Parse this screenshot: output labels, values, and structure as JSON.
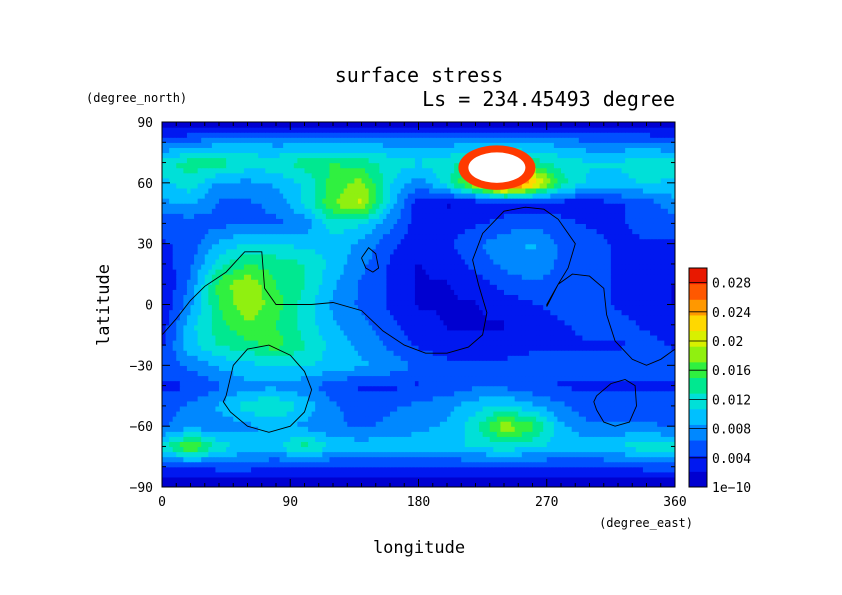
{
  "chart_data": {
    "type": "heatmap",
    "title": "surface stress",
    "subtitle": "Ls = 234.45493 degree",
    "xlabel": "longitude",
    "ylabel": "latitude",
    "x_unit": "(degree_east)",
    "y_unit": "(degree_north)",
    "xlim": [
      0,
      360
    ],
    "ylim": [
      -90,
      90
    ],
    "x_ticks": [
      "0",
      "90",
      "180",
      "270",
      "360"
    ],
    "y_ticks": [
      "90",
      "60",
      "30",
      "0",
      "−30",
      "−60",
      "−90"
    ],
    "x_tick_values": [
      0,
      90,
      180,
      270,
      360
    ],
    "y_tick_values": [
      90,
      60,
      30,
      0,
      -30,
      -60,
      -90
    ],
    "colorbar": {
      "min": 1e-10,
      "max": 0.03,
      "tick_labels": [
        "1e−10",
        "0.004",
        "0.008",
        "0.012",
        "0.016",
        "0.02",
        "0.024",
        "0.028"
      ],
      "tick_values": [
        0,
        0.004,
        0.008,
        0.012,
        0.016,
        0.02,
        0.024,
        0.028
      ],
      "colors": [
        "#0000d0",
        "#0018f0",
        "#0050ff",
        "#0088ff",
        "#00c0ff",
        "#00e0d8",
        "#00e890",
        "#30f040",
        "#90f010",
        "#d8f000",
        "#ffd800",
        "#ff9800",
        "#ff5800",
        "#e81800"
      ]
    },
    "grid": false,
    "lon": [
      0,
      20,
      40,
      60,
      80,
      100,
      120,
      140,
      160,
      180,
      200,
      220,
      240,
      260,
      280,
      300,
      320,
      340,
      360
    ],
    "lat": [
      -90,
      -80,
      -70,
      -60,
      -50,
      -40,
      -30,
      -20,
      -10,
      0,
      10,
      20,
      30,
      40,
      50,
      60,
      70,
      80,
      90
    ],
    "values": [
      [
        0.0,
        0.0,
        0.0,
        0.0,
        0.0,
        0.0,
        0.0,
        0.0,
        0.0,
        0.0,
        0.0,
        0.0,
        0.0,
        0.0,
        0.0,
        0.0,
        0.0,
        0.0,
        0.0
      ],
      [
        0.004,
        0.004,
        0.005,
        0.005,
        0.004,
        0.004,
        0.004,
        0.004,
        0.004,
        0.004,
        0.004,
        0.004,
        0.004,
        0.004,
        0.004,
        0.004,
        0.004,
        0.005,
        0.005
      ],
      [
        0.012,
        0.018,
        0.012,
        0.01,
        0.01,
        0.014,
        0.01,
        0.01,
        0.01,
        0.01,
        0.01,
        0.011,
        0.012,
        0.011,
        0.01,
        0.01,
        0.011,
        0.012,
        0.012
      ],
      [
        0.006,
        0.008,
        0.007,
        0.008,
        0.009,
        0.008,
        0.007,
        0.006,
        0.007,
        0.008,
        0.009,
        0.012,
        0.019,
        0.016,
        0.009,
        0.007,
        0.007,
        0.007,
        0.006
      ],
      [
        0.005,
        0.007,
        0.009,
        0.012,
        0.013,
        0.01,
        0.007,
        0.005,
        0.006,
        0.007,
        0.008,
        0.01,
        0.011,
        0.009,
        0.007,
        0.005,
        0.005,
        0.005,
        0.005
      ],
      [
        0.004,
        0.004,
        0.006,
        0.008,
        0.008,
        0.007,
        0.005,
        0.004,
        0.004,
        0.004,
        0.005,
        0.006,
        0.006,
        0.005,
        0.004,
        0.004,
        0.004,
        0.004,
        0.004
      ],
      [
        0.005,
        0.007,
        0.009,
        0.01,
        0.011,
        0.011,
        0.01,
        0.009,
        0.008,
        0.006,
        0.005,
        0.005,
        0.005,
        0.005,
        0.005,
        0.005,
        0.005,
        0.006,
        0.005
      ],
      [
        0.004,
        0.01,
        0.013,
        0.014,
        0.016,
        0.013,
        0.01,
        0.008,
        0.006,
        0.004,
        0.003,
        0.003,
        0.003,
        0.004,
        0.004,
        0.004,
        0.004,
        0.005,
        0.004
      ],
      [
        0.003,
        0.01,
        0.014,
        0.017,
        0.015,
        0.012,
        0.009,
        0.007,
        0.005,
        0.003,
        0.002,
        0.002,
        0.002,
        0.003,
        0.004,
        0.005,
        0.005,
        0.004,
        0.003
      ],
      [
        0.002,
        0.008,
        0.015,
        0.019,
        0.016,
        0.012,
        0.008,
        0.006,
        0.004,
        0.002,
        0.002,
        0.002,
        0.003,
        0.004,
        0.005,
        0.005,
        0.004,
        0.003,
        0.002
      ],
      [
        0.002,
        0.007,
        0.016,
        0.019,
        0.015,
        0.013,
        0.009,
        0.006,
        0.004,
        0.002,
        0.002,
        0.003,
        0.005,
        0.006,
        0.006,
        0.005,
        0.004,
        0.003,
        0.002
      ],
      [
        0.003,
        0.006,
        0.012,
        0.015,
        0.014,
        0.013,
        0.01,
        0.007,
        0.004,
        0.002,
        0.003,
        0.005,
        0.007,
        0.008,
        0.006,
        0.005,
        0.004,
        0.003,
        0.003
      ],
      [
        0.004,
        0.005,
        0.009,
        0.011,
        0.011,
        0.01,
        0.01,
        0.008,
        0.005,
        0.003,
        0.004,
        0.006,
        0.008,
        0.009,
        0.006,
        0.005,
        0.004,
        0.004,
        0.004
      ],
      [
        0.005,
        0.005,
        0.006,
        0.006,
        0.006,
        0.007,
        0.012,
        0.011,
        0.007,
        0.003,
        0.003,
        0.004,
        0.005,
        0.006,
        0.005,
        0.004,
        0.004,
        0.005,
        0.005
      ],
      [
        0.008,
        0.009,
        0.006,
        0.006,
        0.007,
        0.011,
        0.017,
        0.02,
        0.01,
        0.003,
        0.002,
        0.002,
        0.003,
        0.003,
        0.003,
        0.003,
        0.004,
        0.005,
        0.008
      ],
      [
        0.01,
        0.012,
        0.008,
        0.008,
        0.009,
        0.011,
        0.016,
        0.018,
        0.011,
        0.007,
        0.012,
        0.02,
        0.03,
        0.024,
        0.014,
        0.01,
        0.01,
        0.011,
        0.01
      ],
      [
        0.012,
        0.014,
        0.014,
        0.012,
        0.012,
        0.014,
        0.015,
        0.014,
        0.012,
        0.011,
        0.012,
        0.014,
        0.016,
        0.014,
        0.012,
        0.011,
        0.011,
        0.012,
        0.012
      ],
      [
        0.006,
        0.007,
        0.008,
        0.009,
        0.008,
        0.008,
        0.008,
        0.008,
        0.008,
        0.008,
        0.008,
        0.008,
        0.009,
        0.008,
        0.008,
        0.007,
        0.007,
        0.007,
        0.006
      ],
      [
        0.0,
        0.0,
        0.0,
        0.0,
        0.0,
        0.0,
        0.0,
        0.0,
        0.0,
        0.0,
        0.0,
        0.0,
        0.0,
        0.0,
        0.0,
        0.0,
        0.0,
        0.0,
        0.0
      ]
    ],
    "saturated_region": {
      "lon_range": [
        215,
        255
      ],
      "lat_range": [
        60,
        75
      ]
    },
    "contours": [
      {
        "lon": [
          0,
          10,
          20,
          30,
          45,
          58,
          70,
          72,
          80,
          90,
          105,
          120,
          140,
          155,
          170,
          185,
          200,
          215,
          225,
          228,
          222,
          218,
          225,
          240,
          255,
          268,
          278,
          290,
          285,
          278,
          270,
          270,
          278,
          288,
          300,
          310,
          312,
          318,
          330,
          340,
          350,
          360
        ],
        "lat": [
          -15,
          -7,
          2,
          9,
          16,
          26,
          26,
          8,
          0,
          0,
          0,
          1,
          -3,
          -13,
          -20,
          -24,
          -24,
          -21,
          -15,
          -4,
          10,
          22,
          35,
          46,
          48,
          47,
          42,
          30,
          18,
          10,
          0,
          -1,
          10,
          15,
          14,
          8,
          -5,
          -18,
          -27,
          -30,
          -27,
          -22
        ]
      },
      {
        "lon": [
          140,
          145,
          150,
          152,
          148,
          143,
          140
        ],
        "lat": [
          23,
          28,
          25,
          18,
          16,
          18,
          23
        ]
      },
      {
        "lon": [
          45,
          50,
          60,
          75,
          90,
          100,
          105,
          100,
          90,
          75,
          60,
          48,
          43,
          45
        ],
        "lat": [
          -45,
          -30,
          -22,
          -20,
          -25,
          -33,
          -42,
          -53,
          -60,
          -63,
          -60,
          -53,
          -48,
          -45
        ]
      },
      {
        "lon": [
          305,
          315,
          325,
          332,
          333,
          328,
          318,
          310,
          305,
          303,
          305
        ],
        "lat": [
          -45,
          -39,
          -37,
          -40,
          -50,
          -58,
          -60,
          -58,
          -52,
          -48,
          -45
        ]
      }
    ]
  }
}
